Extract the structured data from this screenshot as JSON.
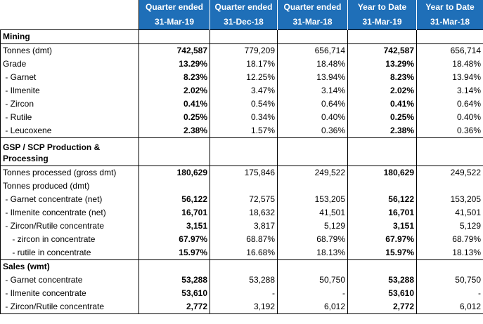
{
  "header": {
    "row1": [
      "Quarter ended",
      "Quarter ended",
      "Quarter ended",
      "Year to Date",
      "Year to Date"
    ],
    "row2": [
      "31-Mar-19",
      "31-Dec-18",
      "31-Mar-18",
      "31-Mar-19",
      "31-Mar-18"
    ]
  },
  "rows": [
    {
      "label": "Mining",
      "section": true,
      "values": [
        "",
        "",
        "",
        "",
        ""
      ]
    },
    {
      "label": "Tonnes (dmt)",
      "values": [
        "742,587",
        "779,209",
        "656,714",
        "742,587",
        "656,714"
      ]
    },
    {
      "label": "Grade",
      "values": [
        "13.29%",
        "18.17%",
        "18.48%",
        "13.29%",
        "18.48%"
      ]
    },
    {
      "label": " - Garnet",
      "values": [
        "8.23%",
        "12.25%",
        "13.94%",
        "8.23%",
        "13.94%"
      ]
    },
    {
      "label": " - Ilmenite",
      "values": [
        "2.02%",
        "3.47%",
        "3.14%",
        "2.02%",
        "3.14%"
      ]
    },
    {
      "label": " - Zircon",
      "values": [
        "0.41%",
        "0.54%",
        "0.64%",
        "0.41%",
        "0.64%"
      ]
    },
    {
      "label": " - Rutile",
      "values": [
        "0.25%",
        "0.34%",
        "0.40%",
        "0.25%",
        "0.40%"
      ]
    },
    {
      "label": " - Leucoxene",
      "values": [
        "2.38%",
        "1.57%",
        "0.36%",
        "2.38%",
        "0.36%"
      ]
    },
    {
      "label": "GSP / SCP Production & Processing",
      "section": true,
      "tall": true,
      "values": [
        "",
        "",
        "",
        "",
        ""
      ]
    },
    {
      "label": "Tonnes processed (gross dmt)",
      "values": [
        "180,629",
        "175,846",
        "249,522",
        "180,629",
        "249,522"
      ]
    },
    {
      "label": "Tonnes produced (dmt)",
      "values": [
        "",
        "",
        "",
        "",
        ""
      ]
    },
    {
      "label": " - Garnet concentrate (net)",
      "values": [
        "56,122",
        "72,575",
        "153,205",
        "56,122",
        "153,205"
      ]
    },
    {
      "label": " - Ilmenite concentrate (net)",
      "values": [
        "16,701",
        "18,632",
        "41,501",
        "16,701",
        "41,501"
      ]
    },
    {
      "label": " - Zircon/Rutile concentrate",
      "values": [
        "3,151",
        "3,817",
        "5,129",
        "3,151",
        "5,129"
      ]
    },
    {
      "label": "    - zircon in concentrate",
      "values": [
        "67.97%",
        "68.87%",
        "68.79%",
        "67.97%",
        "68.79%"
      ]
    },
    {
      "label": "    - rutile in concentrate",
      "values": [
        "15.97%",
        "16.68%",
        "18.13%",
        "15.97%",
        "18.13%"
      ]
    },
    {
      "label": "Sales (wmt)",
      "section": true,
      "values": [
        "",
        "",
        "",
        "",
        ""
      ]
    },
    {
      "label": " - Garnet concentrate",
      "values": [
        "53,288",
        "53,288",
        "50,750",
        "53,288",
        "50,750"
      ]
    },
    {
      "label": " - Ilmenite concentrate",
      "values": [
        "53,610",
        "-",
        "-",
        "53,610",
        "-"
      ]
    },
    {
      "label": " - Zircon/Rutile concentrate",
      "values": [
        "2,772",
        "3,192",
        "6,012",
        "2,772",
        "6,012"
      ]
    }
  ],
  "colors": {
    "header_bg": "#1f6fb8",
    "header_text": "#ffffff"
  }
}
